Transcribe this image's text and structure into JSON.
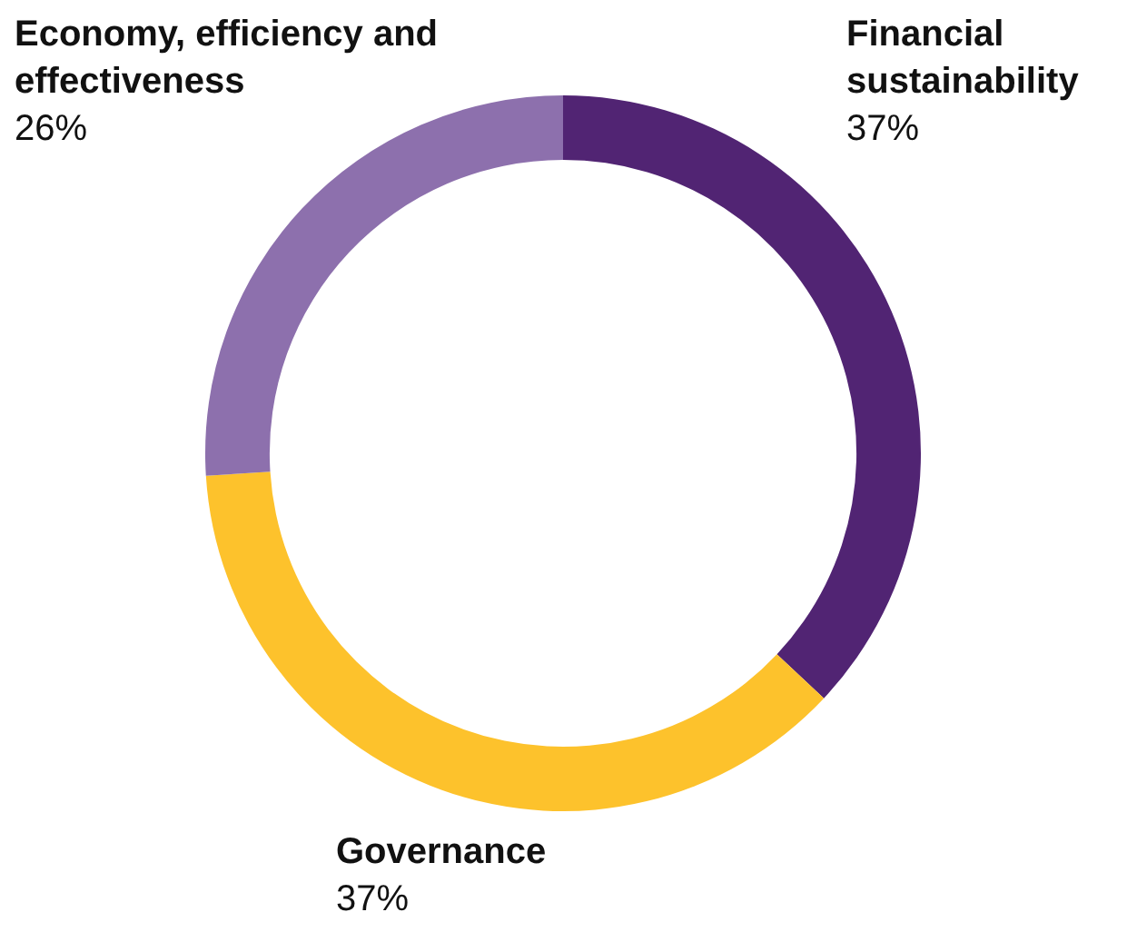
{
  "chart_data": {
    "type": "donut",
    "categories": [
      "Financial sustainability",
      "Governance",
      "Economy, efficiency and effectiveness"
    ],
    "values": [
      37,
      37,
      26
    ],
    "value_labels": [
      "37%",
      "37%",
      "26%"
    ],
    "colors": [
      "#512473",
      "#fdc22c",
      "#8d70ad"
    ],
    "legend": false
  }
}
